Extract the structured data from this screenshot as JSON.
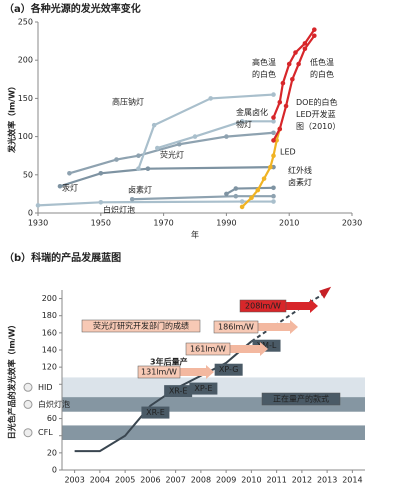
{
  "chart_data": [
    {
      "type": "line",
      "title": "（a）各种光源的发光效率变化",
      "xlabel": "年",
      "ylabel": "发光效率（lm/W）",
      "xlim": [
        1930,
        2030
      ],
      "ylim": [
        0,
        250
      ],
      "xticks": [
        1930,
        1950,
        1970,
        1990,
        2010,
        2030
      ],
      "yticks": [
        0,
        50,
        100,
        150,
        200,
        250
      ],
      "series": [
        {
          "name": "白炽灯泡",
          "color": "#a9bfcc",
          "x": [
            1930,
            1950,
            1995,
            2005
          ],
          "values": [
            10,
            14,
            15,
            15
          ]
        },
        {
          "name": "卤素灯",
          "color": "#8ea2b0",
          "x": [
            1960,
            1993,
            2005
          ],
          "values": [
            18,
            22,
            22
          ]
        },
        {
          "name": "红外线卤素灯",
          "color": "#7e93a2",
          "x": [
            1990,
            1993,
            2005
          ],
          "values": [
            25,
            32,
            33
          ]
        },
        {
          "name": "汞灯",
          "color": "#7e93a2",
          "x": [
            1937,
            1950,
            1965,
            2005
          ],
          "values": [
            35,
            52,
            58,
            60
          ]
        },
        {
          "name": "荧光灯",
          "color": "#8ea2b0",
          "x": [
            1940,
            1955,
            1962,
            1975,
            1990,
            2005
          ],
          "values": [
            52,
            70,
            75,
            90,
            100,
            105
          ]
        },
        {
          "name": "金属卤化物灯",
          "color": "#a9bfcc",
          "x": [
            1968,
            1980,
            1995,
            2005
          ],
          "values": [
            85,
            100,
            120,
            120
          ]
        },
        {
          "name": "高压钠灯",
          "color": "#a9bfcc",
          "x": [
            1962,
            1967,
            1985,
            2005
          ],
          "values": [
            58,
            115,
            150,
            155
          ]
        },
        {
          "name": "LED",
          "color": "#f0b323",
          "x": [
            1995,
            1998,
            2000,
            2002,
            2004,
            2005,
            2006,
            2007
          ],
          "values": [
            8,
            20,
            30,
            45,
            60,
            75,
            95,
            110
          ]
        },
        {
          "name": "高色温的白色",
          "color": "#d7262a",
          "x": [
            2005,
            2007,
            2008,
            2010,
            2012,
            2015,
            2018
          ],
          "values": [
            125,
            145,
            170,
            195,
            210,
            222,
            240
          ]
        },
        {
          "name": "低色温的白色",
          "color": "#d7262a",
          "x": [
            2005,
            2007,
            2009,
            2011,
            2013,
            2015,
            2018
          ],
          "values": [
            95,
            110,
            140,
            175,
            195,
            215,
            232
          ]
        }
      ],
      "annotations": [
        {
          "text": "DOE的白色LED开发蓝图（2010）",
          "color": "#d7262a"
        }
      ]
    },
    {
      "type": "line",
      "title": "（b）科瑞的产品发展蓝图",
      "ylabel": "日光色产品的发光效率（lm/W）",
      "xlim": [
        2002.5,
        2014.5
      ],
      "xticks": [
        2003,
        2004,
        2005,
        2006,
        2007,
        2008,
        2009,
        2010,
        2011,
        2012,
        2013,
        2014
      ],
      "ylim": [
        0,
        210
      ],
      "yticks": [
        0,
        20,
        40,
        60,
        80,
        100,
        120,
        140,
        160,
        180,
        200
      ],
      "bands": [
        {
          "name": "HID",
          "range": [
            85,
            108
          ],
          "color": "#dbe3ea"
        },
        {
          "name": "白炽灯泡",
          "range": [
            68,
            85
          ],
          "color": "#8596a2"
        },
        {
          "name": "CFL",
          "range": [
            35,
            52
          ],
          "color": "#8596a2"
        }
      ],
      "series": [
        {
          "color": "#3a4650",
          "x": [
            2003,
            2004,
            2005,
            2006,
            2007,
            2008,
            2009,
            2010
          ],
          "values": [
            22,
            22,
            40,
            75,
            95,
            110,
            125,
            150
          ]
        },
        {
          "color": "#3a4650",
          "dashed": true,
          "x": [
            2010,
            2011,
            2012,
            2013
          ],
          "values": [
            150,
            170,
            190,
            208
          ]
        }
      ],
      "products": [
        {
          "name": "XR-E",
          "x": 2006.2,
          "value": 67
        },
        {
          "name": "XR-E",
          "x": 2007.1,
          "value": 92
        },
        {
          "name": "XP-E",
          "x": 2008.1,
          "value": 95
        },
        {
          "name": "XP-G",
          "x": 2009.1,
          "value": 117
        },
        {
          "name": "XM-L",
          "x": 2010.6,
          "value": 145
        }
      ],
      "annotations": [
        {
          "text": "208lm/W"
        },
        {
          "text": "186lm/W"
        },
        {
          "text": "161lm/W"
        },
        {
          "text": "131lm/W"
        },
        {
          "text": "荧光灯研究开发部门的成绩"
        },
        {
          "text": "3年后量产"
        },
        {
          "text": "正在量产的款式"
        }
      ]
    }
  ]
}
